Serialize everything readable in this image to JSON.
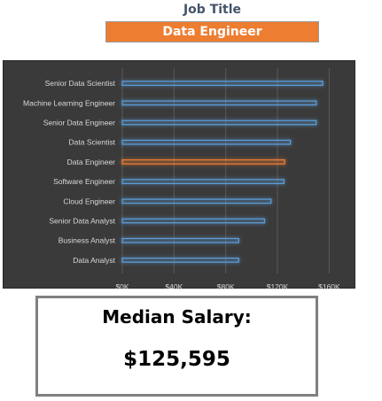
{
  "header": {
    "label": "Job Title",
    "selected_job": "Data Engineer"
  },
  "colors": {
    "highlight": "#ed7d31",
    "bar": "#5b9bd5",
    "chart_background": "#3a3a3a",
    "gridline": "#5a5a5a",
    "text": "#d9d9d9"
  },
  "chart_data": {
    "type": "bar",
    "orientation": "horizontal",
    "categories": [
      "Senior Data Scientist",
      "Machine Learning Engineer",
      "Senior Data Engineer",
      "Data Scientist",
      "Data Engineer",
      "Software Engineer",
      "Cloud Engineer",
      "Senior Data Analyst",
      "Business Analyst",
      "Data Analyst"
    ],
    "values": [
      155000,
      150000,
      150000,
      130000,
      125595,
      125000,
      115000,
      110000,
      90000,
      90000
    ],
    "highlight_category": "Data Engineer",
    "xlim": [
      0,
      170000
    ],
    "x_ticks": [
      0,
      40000,
      80000,
      120000,
      160000
    ],
    "x_tick_labels": [
      "$0K",
      "$40K",
      "$80K",
      "$120K",
      "$160K"
    ],
    "grid": true,
    "title": "",
    "xlabel": "",
    "ylabel": ""
  },
  "summary": {
    "label": "Median Salary:",
    "value": "$125,595"
  }
}
